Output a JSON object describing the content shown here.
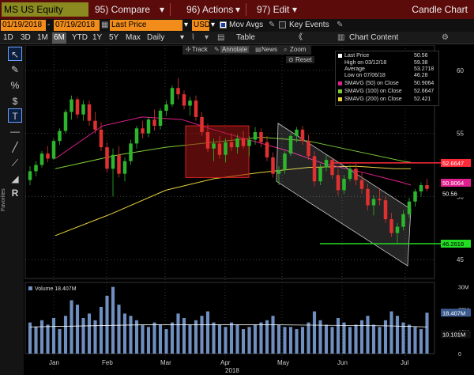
{
  "titlebar": {
    "ticker": "MS US Equity",
    "compare": "95) Compare",
    "actions": "96) Actions",
    "edit": "97) Edit",
    "window_title": "Candle Chart"
  },
  "row2": {
    "date_from": "01/19/2018",
    "date_to": "07/19/2018",
    "price_field": "Last Price",
    "currency": "USD",
    "mov_avgs": "Mov Avgs",
    "key_events": "Key Events",
    "table": "Table",
    "chart_content": "Chart Content"
  },
  "periods": [
    "1D",
    "3D",
    "1M",
    "6M",
    "YTD",
    "1Y",
    "5Y",
    "Max"
  ],
  "active_period": "6M",
  "frequency": "Daily",
  "chart_tools": {
    "track": "Track",
    "annotate": "Annotate",
    "news": "News",
    "zoom": "Zoom",
    "reset": "Reset"
  },
  "left_tools": [
    "cursor",
    "pencil",
    "percent",
    "dollar",
    "text",
    "horizontal-line",
    "trend-line",
    "channel",
    "fib",
    "R"
  ],
  "favorites_label": "Favorites",
  "legend": {
    "last_price": {
      "label": "Last Price",
      "value": "50.56"
    },
    "high": {
      "label": "High on 03/12/18",
      "value": "59.38"
    },
    "average": {
      "label": "Average",
      "value": "53.2718"
    },
    "low": {
      "label": "Low on 07/06/18",
      "value": "46.28"
    },
    "sma50": {
      "label": "SMAVG (50) on Close",
      "value": "50.9064",
      "color": "#e0208f"
    },
    "sma100": {
      "label": "SMAVG (100) on Close",
      "value": "52.6647",
      "color": "#7ecb35"
    },
    "sma200": {
      "label": "SMAVG (200) on Close",
      "value": "52.421",
      "color": "#e8d33b"
    }
  },
  "volume": {
    "label": "Volume",
    "value": "18.407M",
    "avg_value": "10.101M"
  },
  "price_badges": {
    "red_line": "52.6647",
    "sma50_badge": "50.9064",
    "last": "50.56",
    "green_line": "46.2618"
  },
  "colors": {
    "up": "#2db52d",
    "down": "#e03030",
    "titlebar": "#5c0b0b",
    "accent": "#f28c1a"
  },
  "chart_data": {
    "type": "candlestick",
    "x_tick_labels": [
      "Jan",
      "Feb",
      "Mar",
      "Apr",
      "May",
      "Jun",
      "Jul"
    ],
    "x_year_label": "2018",
    "y_ticks": [
      45,
      50,
      55,
      60
    ],
    "ylim": [
      43.5,
      62
    ],
    "volume_ticks": [
      "30M",
      "20M",
      "10M",
      "0"
    ],
    "candles": [
      [
        51.3,
        52.4,
        50.9,
        52.0
      ],
      [
        52.0,
        52.8,
        51.6,
        52.5
      ],
      [
        52.5,
        53.6,
        52.3,
        53.4
      ],
      [
        53.4,
        54.0,
        52.7,
        53.0
      ],
      [
        53.0,
        54.6,
        52.9,
        54.4
      ],
      [
        54.4,
        55.4,
        54.1,
        55.2
      ],
      [
        55.2,
        56.9,
        55.0,
        56.7
      ],
      [
        56.7,
        58.0,
        56.1,
        57.7
      ],
      [
        57.7,
        57.9,
        56.2,
        56.5
      ],
      [
        56.5,
        57.6,
        56.0,
        57.3
      ],
      [
        57.3,
        57.6,
        55.6,
        56.0
      ],
      [
        56.0,
        56.7,
        55.0,
        55.3
      ],
      [
        55.3,
        55.9,
        53.6,
        53.9
      ],
      [
        53.9,
        54.3,
        51.9,
        52.2
      ],
      [
        52.2,
        53.8,
        50.0,
        53.3
      ],
      [
        53.3,
        54.0,
        51.5,
        51.8
      ],
      [
        51.8,
        53.1,
        51.2,
        52.8
      ],
      [
        52.8,
        54.5,
        52.5,
        54.2
      ],
      [
        54.2,
        55.6,
        53.8,
        55.4
      ],
      [
        55.4,
        56.0,
        54.6,
        55.0
      ],
      [
        55.0,
        56.3,
        54.7,
        56.1
      ],
      [
        56.1,
        56.9,
        55.2,
        55.6
      ],
      [
        55.6,
        57.0,
        55.3,
        56.8
      ],
      [
        56.8,
        57.6,
        56.4,
        57.3
      ],
      [
        57.3,
        58.8,
        57.1,
        58.6
      ],
      [
        58.6,
        59.4,
        57.7,
        58.1
      ],
      [
        58.1,
        58.4,
        56.9,
        57.2
      ],
      [
        57.2,
        57.9,
        56.4,
        57.6
      ],
      [
        57.6,
        58.0,
        56.0,
        56.3
      ],
      [
        56.3,
        56.7,
        54.8,
        55.1
      ],
      [
        55.1,
        55.8,
        53.5,
        53.8
      ],
      [
        53.8,
        54.6,
        52.8,
        54.2
      ],
      [
        54.2,
        54.8,
        53.0,
        53.3
      ],
      [
        53.3,
        54.6,
        52.7,
        54.3
      ],
      [
        54.3,
        55.0,
        53.6,
        53.9
      ],
      [
        53.9,
        54.9,
        53.4,
        54.6
      ],
      [
        54.6,
        55.2,
        53.8,
        54.0
      ],
      [
        54.0,
        54.8,
        53.2,
        54.5
      ],
      [
        54.5,
        55.5,
        54.1,
        55.1
      ],
      [
        55.1,
        55.4,
        53.9,
        54.3
      ],
      [
        54.3,
        54.8,
        52.8,
        53.1
      ],
      [
        53.1,
        53.5,
        51.5,
        51.8
      ],
      [
        51.8,
        52.4,
        50.9,
        52.1
      ],
      [
        52.1,
        53.6,
        51.8,
        53.4
      ],
      [
        53.4,
        55.0,
        53.2,
        54.8
      ],
      [
        54.8,
        55.5,
        54.3,
        55.3
      ],
      [
        55.3,
        55.6,
        54.1,
        54.4
      ],
      [
        54.4,
        54.9,
        52.9,
        53.2
      ],
      [
        53.2,
        53.6,
        50.8,
        51.2
      ],
      [
        51.2,
        52.6,
        50.9,
        52.3
      ],
      [
        52.3,
        53.3,
        52.0,
        52.9
      ],
      [
        52.9,
        53.1,
        51.4,
        51.7
      ],
      [
        51.7,
        52.2,
        50.1,
        50.5
      ],
      [
        50.5,
        51.7,
        50.2,
        51.4
      ],
      [
        51.4,
        52.5,
        51.2,
        52.2
      ],
      [
        52.2,
        52.6,
        50.9,
        51.3
      ],
      [
        51.3,
        51.9,
        50.2,
        50.6
      ],
      [
        50.6,
        51.0,
        48.9,
        49.3
      ],
      [
        49.3,
        50.1,
        48.5,
        49.8
      ],
      [
        49.8,
        50.6,
        49.3,
        49.7
      ],
      [
        49.7,
        50.0,
        47.9,
        48.2
      ],
      [
        48.2,
        48.7,
        46.8,
        47.1
      ],
      [
        47.1,
        47.9,
        46.3,
        47.6
      ],
      [
        47.6,
        48.9,
        47.3,
        48.6
      ],
      [
        48.6,
        49.9,
        48.3,
        49.6
      ],
      [
        49.6,
        50.6,
        49.2,
        50.4
      ],
      [
        50.4,
        51.1,
        50.0,
        50.9
      ],
      [
        50.9,
        51.4,
        50.4,
        50.6
      ]
    ],
    "volumes_m": [
      14,
      12,
      15,
      13,
      16,
      11,
      17,
      24,
      22,
      16,
      18,
      15,
      21,
      26,
      30,
      22,
      18,
      17,
      15,
      13,
      12,
      14,
      13,
      11,
      14,
      18,
      16,
      13,
      15,
      17,
      19,
      14,
      13,
      12,
      14,
      13,
      11,
      12,
      13,
      14,
      15,
      17,
      13,
      12,
      12,
      11,
      12,
      14,
      19,
      15,
      13,
      12,
      16,
      14,
      12,
      13,
      15,
      17,
      13,
      12,
      15,
      19,
      17,
      14,
      13,
      12,
      11,
      18.4
    ]
  }
}
